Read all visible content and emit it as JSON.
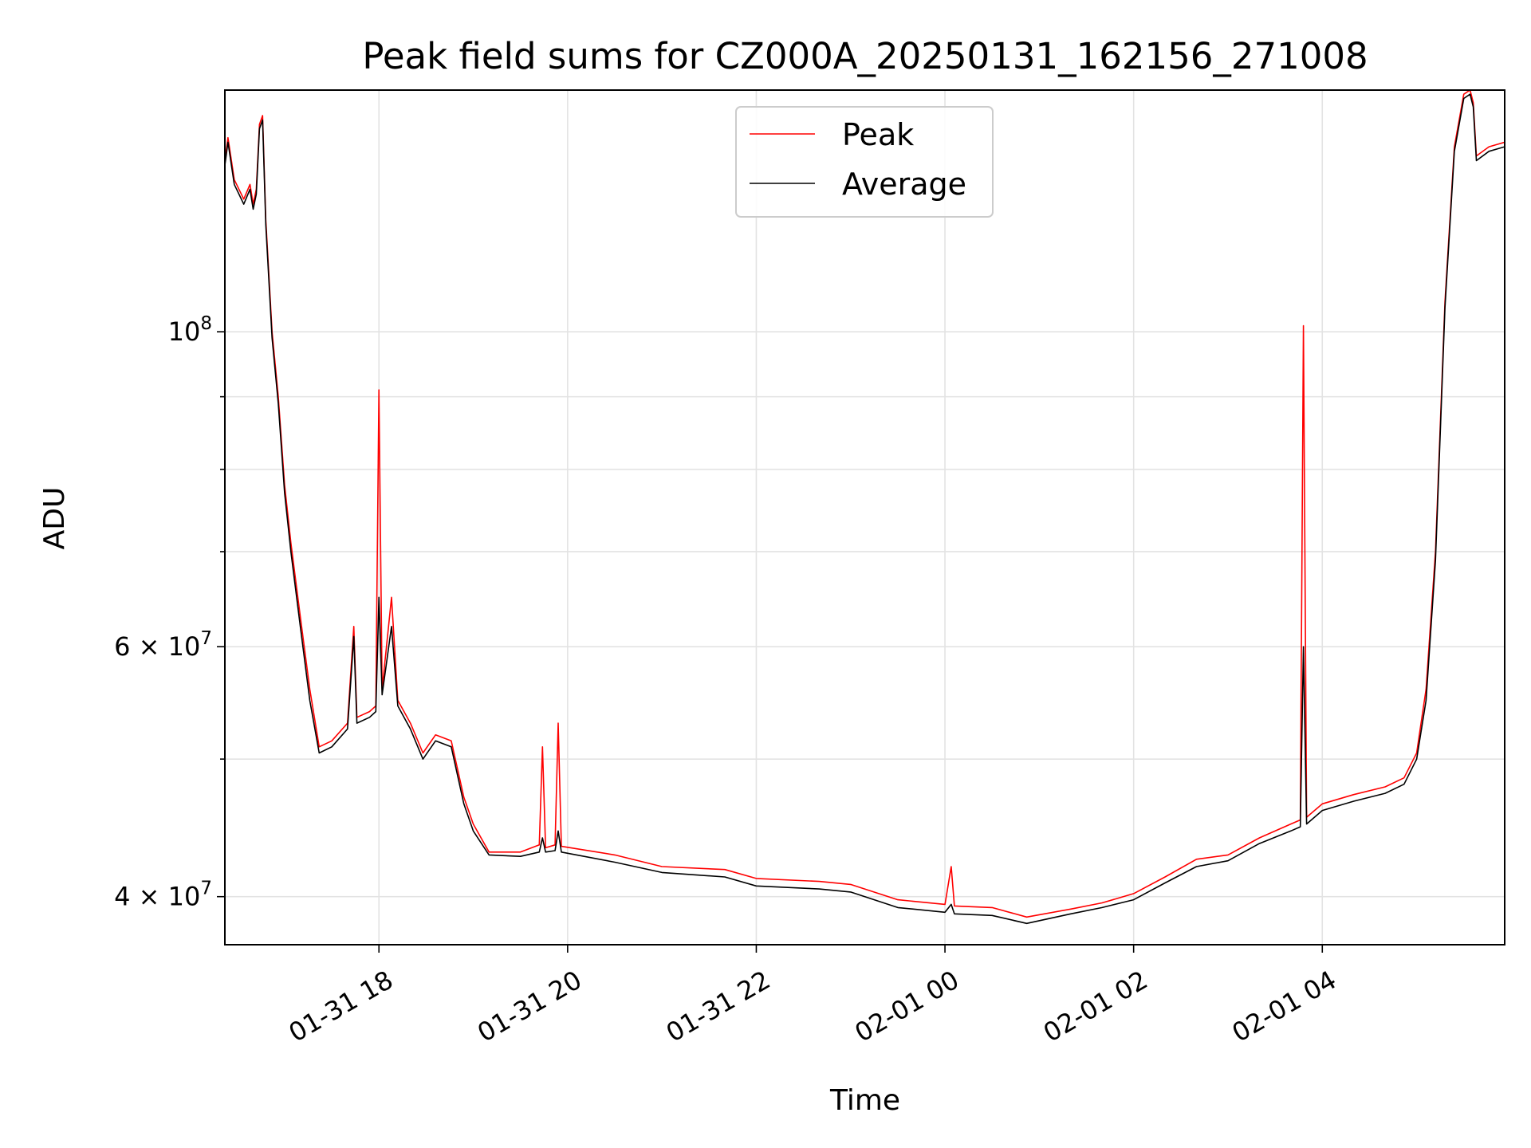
{
  "chart_data": {
    "type": "line",
    "title": "Peak field sums for CZ000A_20250131_162156_271008",
    "xlabel": "Time",
    "ylabel": "ADU",
    "yscale": "log",
    "ylim": [
      37000000,
      148000000
    ],
    "xlim": [
      "2025-01-31 16:22",
      "2025-02-01 05:56"
    ],
    "x_ticks": [
      {
        "value": "2025-01-31 18:00",
        "label": "01-31 18"
      },
      {
        "value": "2025-01-31 20:00",
        "label": "01-31 20"
      },
      {
        "value": "2025-01-31 22:00",
        "label": "01-31 22"
      },
      {
        "value": "2025-02-01 00:00",
        "label": "02-01 00"
      },
      {
        "value": "2025-02-01 02:00",
        "label": "02-01 02"
      },
      {
        "value": "2025-02-01 04:00",
        "label": "02-01 04"
      }
    ],
    "y_ticks_major": [
      {
        "value": 40000000,
        "label": "4 × 10⁷",
        "mantissa": "4 × 10",
        "exp": "7"
      },
      {
        "value": 60000000,
        "label": "6 × 10⁷",
        "mantissa": "6 × 10",
        "exp": "7"
      },
      {
        "value": 100000000,
        "label": "10⁸",
        "mantissa": "10",
        "exp": "8"
      }
    ],
    "y_ticks_minor": [
      50000000,
      70000000,
      80000000,
      90000000
    ],
    "grid": true,
    "legend": {
      "placement": "top-center"
    },
    "series": [
      {
        "name": "Peak",
        "color": "#ff0000",
        "points": [
          [
            "2025-01-31 16:22",
            132000000
          ],
          [
            "2025-01-31 16:24",
            137000000
          ],
          [
            "2025-01-31 16:28",
            128000000
          ],
          [
            "2025-01-31 16:34",
            124000000
          ],
          [
            "2025-01-31 16:38",
            127000000
          ],
          [
            "2025-01-31 16:40",
            123000000
          ],
          [
            "2025-01-31 16:42",
            126000000
          ],
          [
            "2025-01-31 16:44",
            140000000
          ],
          [
            "2025-01-31 16:46",
            142000000
          ],
          [
            "2025-01-31 16:48",
            120000000
          ],
          [
            "2025-01-31 16:52",
            100000000
          ],
          [
            "2025-01-31 16:56",
            90000000
          ],
          [
            "2025-01-31 17:00",
            78000000
          ],
          [
            "2025-01-31 17:04",
            71000000
          ],
          [
            "2025-01-31 17:10",
            63000000
          ],
          [
            "2025-01-31 17:16",
            56000000
          ],
          [
            "2025-01-31 17:22",
            51000000
          ],
          [
            "2025-01-31 17:30",
            51500000
          ],
          [
            "2025-01-31 17:40",
            53000000
          ],
          [
            "2025-01-31 17:44",
            62000000
          ],
          [
            "2025-01-31 17:46",
            53500000
          ],
          [
            "2025-01-31 17:54",
            54000000
          ],
          [
            "2025-01-31 17:58",
            54500000
          ],
          [
            "2025-01-31 18:00",
            91000000
          ],
          [
            "2025-01-31 18:02",
            56000000
          ],
          [
            "2025-01-31 18:08",
            65000000
          ],
          [
            "2025-01-31 18:12",
            55000000
          ],
          [
            "2025-01-31 18:20",
            53000000
          ],
          [
            "2025-01-31 18:28",
            50500000
          ],
          [
            "2025-01-31 18:36",
            52000000
          ],
          [
            "2025-01-31 18:46",
            51500000
          ],
          [
            "2025-01-31 18:54",
            47000000
          ],
          [
            "2025-01-31 19:00",
            45000000
          ],
          [
            "2025-01-31 19:10",
            43000000
          ],
          [
            "2025-01-31 19:30",
            43000000
          ],
          [
            "2025-01-31 19:42",
            43500000
          ],
          [
            "2025-01-31 19:44",
            51000000
          ],
          [
            "2025-01-31 19:46",
            43300000
          ],
          [
            "2025-01-31 19:52",
            43500000
          ],
          [
            "2025-01-31 19:54",
            53000000
          ],
          [
            "2025-01-31 19:56",
            43400000
          ],
          [
            "2025-01-31 20:30",
            42800000
          ],
          [
            "2025-01-31 21:00",
            42000000
          ],
          [
            "2025-01-31 21:40",
            41800000
          ],
          [
            "2025-01-31 22:00",
            41200000
          ],
          [
            "2025-01-31 22:40",
            41000000
          ],
          [
            "2025-01-31 23:00",
            40800000
          ],
          [
            "2025-01-31 23:30",
            39800000
          ],
          [
            "2025-02-01 00:00",
            39500000
          ],
          [
            "2025-02-01 00:04",
            42000000
          ],
          [
            "2025-02-01 00:06",
            39400000
          ],
          [
            "2025-02-01 00:30",
            39300000
          ],
          [
            "2025-02-01 00:52",
            38700000
          ],
          [
            "2025-02-01 01:20",
            39200000
          ],
          [
            "2025-02-01 01:40",
            39600000
          ],
          [
            "2025-02-01 02:00",
            40200000
          ],
          [
            "2025-02-01 02:20",
            41300000
          ],
          [
            "2025-02-01 02:40",
            42500000
          ],
          [
            "2025-02-01 03:00",
            42800000
          ],
          [
            "2025-02-01 03:20",
            44000000
          ],
          [
            "2025-02-01 03:40",
            45000000
          ],
          [
            "2025-02-01 03:46",
            45300000
          ],
          [
            "2025-02-01 03:48",
            101000000
          ],
          [
            "2025-02-01 03:50",
            45500000
          ],
          [
            "2025-02-01 04:00",
            46500000
          ],
          [
            "2025-02-01 04:20",
            47200000
          ],
          [
            "2025-02-01 04:40",
            47800000
          ],
          [
            "2025-02-01 04:52",
            48500000
          ],
          [
            "2025-02-01 05:00",
            50500000
          ],
          [
            "2025-02-01 05:06",
            56000000
          ],
          [
            "2025-02-01 05:12",
            70000000
          ],
          [
            "2025-02-01 05:18",
            105000000
          ],
          [
            "2025-02-01 05:24",
            135000000
          ],
          [
            "2025-02-01 05:30",
            147000000
          ],
          [
            "2025-02-01 05:34",
            148000000
          ],
          [
            "2025-02-01 05:36",
            145000000
          ],
          [
            "2025-02-01 05:38",
            133000000
          ],
          [
            "2025-02-01 05:46",
            135000000
          ],
          [
            "2025-02-01 05:56",
            136000000
          ]
        ]
      },
      {
        "name": "Average",
        "color": "#000000",
        "points": [
          [
            "2025-01-31 16:22",
            131000000
          ],
          [
            "2025-01-31 16:24",
            136000000
          ],
          [
            "2025-01-31 16:28",
            127000000
          ],
          [
            "2025-01-31 16:34",
            123000000
          ],
          [
            "2025-01-31 16:38",
            126000000
          ],
          [
            "2025-01-31 16:40",
            122000000
          ],
          [
            "2025-01-31 16:42",
            125000000
          ],
          [
            "2025-01-31 16:44",
            139000000
          ],
          [
            "2025-01-31 16:46",
            141000000
          ],
          [
            "2025-01-31 16:48",
            119000000
          ],
          [
            "2025-01-31 16:52",
            99000000
          ],
          [
            "2025-01-31 16:56",
            89000000
          ],
          [
            "2025-01-31 17:00",
            77000000
          ],
          [
            "2025-01-31 17:04",
            70000000
          ],
          [
            "2025-01-31 17:10",
            62000000
          ],
          [
            "2025-01-31 17:16",
            55000000
          ],
          [
            "2025-01-31 17:22",
            50500000
          ],
          [
            "2025-01-31 17:30",
            51000000
          ],
          [
            "2025-01-31 17:40",
            52500000
          ],
          [
            "2025-01-31 17:44",
            61000000
          ],
          [
            "2025-01-31 17:46",
            53000000
          ],
          [
            "2025-01-31 17:54",
            53500000
          ],
          [
            "2025-01-31 17:58",
            54000000
          ],
          [
            "2025-01-31 18:00",
            65000000
          ],
          [
            "2025-01-31 18:02",
            55500000
          ],
          [
            "2025-01-31 18:08",
            62000000
          ],
          [
            "2025-01-31 18:12",
            54500000
          ],
          [
            "2025-01-31 18:20",
            52500000
          ],
          [
            "2025-01-31 18:28",
            50000000
          ],
          [
            "2025-01-31 18:36",
            51500000
          ],
          [
            "2025-01-31 18:46",
            51000000
          ],
          [
            "2025-01-31 18:54",
            46500000
          ],
          [
            "2025-01-31 19:00",
            44500000
          ],
          [
            "2025-01-31 19:10",
            42800000
          ],
          [
            "2025-01-31 19:30",
            42700000
          ],
          [
            "2025-01-31 19:42",
            43000000
          ],
          [
            "2025-01-31 19:44",
            44000000
          ],
          [
            "2025-01-31 19:46",
            43000000
          ],
          [
            "2025-01-31 19:52",
            43100000
          ],
          [
            "2025-01-31 19:54",
            44500000
          ],
          [
            "2025-01-31 19:56",
            43000000
          ],
          [
            "2025-01-31 20:30",
            42300000
          ],
          [
            "2025-01-31 21:00",
            41600000
          ],
          [
            "2025-01-31 21:40",
            41300000
          ],
          [
            "2025-01-31 22:00",
            40700000
          ],
          [
            "2025-01-31 22:40",
            40500000
          ],
          [
            "2025-01-31 23:00",
            40300000
          ],
          [
            "2025-01-31 23:30",
            39300000
          ],
          [
            "2025-02-01 00:00",
            39000000
          ],
          [
            "2025-02-01 00:04",
            39500000
          ],
          [
            "2025-02-01 00:06",
            38900000
          ],
          [
            "2025-02-01 00:30",
            38800000
          ],
          [
            "2025-02-01 00:52",
            38300000
          ],
          [
            "2025-02-01 01:20",
            38900000
          ],
          [
            "2025-02-01 01:40",
            39300000
          ],
          [
            "2025-02-01 02:00",
            39800000
          ],
          [
            "2025-02-01 02:20",
            40900000
          ],
          [
            "2025-02-01 02:40",
            42000000
          ],
          [
            "2025-02-01 03:00",
            42400000
          ],
          [
            "2025-02-01 03:20",
            43600000
          ],
          [
            "2025-02-01 03:40",
            44500000
          ],
          [
            "2025-02-01 03:46",
            44800000
          ],
          [
            "2025-02-01 03:48",
            60000000
          ],
          [
            "2025-02-01 03:50",
            45000000
          ],
          [
            "2025-02-01 04:00",
            46000000
          ],
          [
            "2025-02-01 04:20",
            46700000
          ],
          [
            "2025-02-01 04:40",
            47300000
          ],
          [
            "2025-02-01 04:52",
            48000000
          ],
          [
            "2025-02-01 05:00",
            50000000
          ],
          [
            "2025-02-01 05:06",
            55000000
          ],
          [
            "2025-02-01 05:12",
            69000000
          ],
          [
            "2025-02-01 05:18",
            104000000
          ],
          [
            "2025-02-01 05:24",
            134000000
          ],
          [
            "2025-02-01 05:30",
            146000000
          ],
          [
            "2025-02-01 05:34",
            147000000
          ],
          [
            "2025-02-01 05:36",
            144000000
          ],
          [
            "2025-02-01 05:38",
            132000000
          ],
          [
            "2025-02-01 05:46",
            134000000
          ],
          [
            "2025-02-01 05:56",
            135000000
          ]
        ]
      }
    ]
  }
}
